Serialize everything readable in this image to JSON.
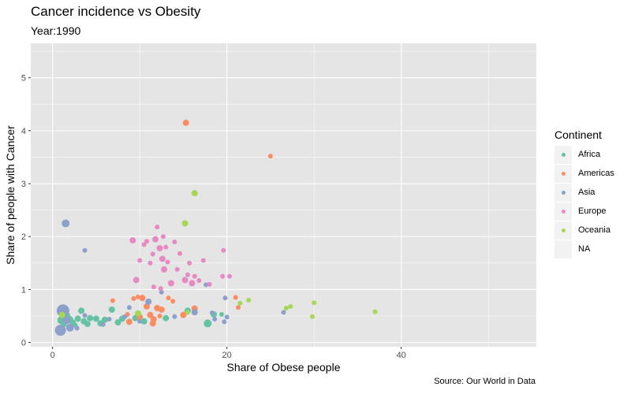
{
  "title": "Cancer incidence vs Obesity",
  "subtitle": "Year:1990",
  "caption": "Source: Our World in Data",
  "legend": {
    "title": "Continent",
    "entries": [
      {
        "label": "Africa",
        "color": "#66c2a5"
      },
      {
        "label": "Americas",
        "color": "#fc8d62"
      },
      {
        "label": "Asia",
        "color": "#8da0cb"
      },
      {
        "label": "Europe",
        "color": "#e78ac3"
      },
      {
        "label": "Oceania",
        "color": "#a6d854"
      },
      {
        "label": "NA",
        "color": ""
      }
    ]
  },
  "colors": {
    "panel_background": "#e5e5e5",
    "grid": "#ffffff"
  },
  "chart_data": {
    "type": "scatter",
    "title": "Cancer incidence vs Obesity",
    "subtitle": "Year:1990",
    "xlabel": "Share of Obese people",
    "ylabel": "Share of people with Cancer",
    "xlim": [
      -2.5,
      55.5
    ],
    "ylim": [
      -0.08,
      5.65
    ],
    "xticks": [
      0,
      20,
      40
    ],
    "yticks": [
      0,
      1,
      2,
      3,
      4,
      5
    ],
    "grid": true,
    "legend_position": "right",
    "series": [
      {
        "name": "Africa",
        "color": "#66c2a5",
        "points": [
          [
            1.0,
            0.42,
            5
          ],
          [
            1.3,
            0.35,
            4
          ],
          [
            1.6,
            0.5,
            5
          ],
          [
            2.0,
            0.44,
            4
          ],
          [
            2.3,
            0.38,
            4
          ],
          [
            2.6,
            0.33,
            3
          ],
          [
            2.9,
            0.45,
            4
          ],
          [
            3.3,
            0.6,
            4
          ],
          [
            3.6,
            0.4,
            4
          ],
          [
            4.0,
            0.35,
            4
          ],
          [
            4.3,
            0.46,
            4
          ],
          [
            5.0,
            0.45,
            4
          ],
          [
            5.5,
            0.36,
            4
          ],
          [
            6.0,
            0.43,
            4
          ],
          [
            6.8,
            0.62,
            4
          ],
          [
            7.5,
            0.38,
            4
          ],
          [
            8.0,
            0.45,
            4
          ],
          [
            9.5,
            0.46,
            4
          ],
          [
            10.5,
            0.4,
            4
          ],
          [
            13.0,
            0.46,
            4
          ],
          [
            15.5,
            0.6,
            4
          ],
          [
            17.8,
            0.36,
            5
          ],
          [
            18.5,
            0.53,
            4
          ],
          [
            19.4,
            0.53,
            3
          ]
        ]
      },
      {
        "name": "Americas",
        "color": "#fc8d62",
        "points": [
          [
            15.3,
            4.15,
            4
          ],
          [
            25.0,
            3.52,
            3
          ],
          [
            6.9,
            0.79,
            3
          ],
          [
            8.6,
            0.53,
            3
          ],
          [
            9.3,
            0.83,
            3
          ],
          [
            9.8,
            0.86,
            3
          ],
          [
            10.3,
            0.84,
            4
          ],
          [
            10.8,
            0.68,
            4
          ],
          [
            11.2,
            0.52,
            4
          ],
          [
            11.6,
            0.44,
            4
          ],
          [
            12.0,
            0.65,
            4
          ],
          [
            12.5,
            0.62,
            4
          ],
          [
            13.3,
            0.84,
            3
          ],
          [
            13.8,
            0.78,
            3
          ],
          [
            15.0,
            0.52,
            4
          ],
          [
            16.3,
            0.64,
            4
          ],
          [
            21.0,
            0.85,
            3
          ],
          [
            21.3,
            0.66,
            3
          ],
          [
            8.8,
            0.39,
            4
          ],
          [
            10.0,
            0.48,
            4
          ],
          [
            11.5,
            0.36,
            4
          ],
          [
            12.3,
            0.5,
            3
          ]
        ]
      },
      {
        "name": "Asia",
        "color": "#8da0cb",
        "points": [
          [
            1.5,
            2.25,
            5
          ],
          [
            3.7,
            1.74,
            3
          ],
          [
            1.2,
            0.6,
            8
          ],
          [
            0.9,
            0.23,
            7
          ],
          [
            1.6,
            0.42,
            5
          ],
          [
            2.0,
            0.28,
            5
          ],
          [
            2.8,
            0.27,
            3
          ],
          [
            3.7,
            0.51,
            3
          ],
          [
            5.8,
            0.34,
            3
          ],
          [
            8.3,
            0.49,
            3
          ],
          [
            8.8,
            0.66,
            3
          ],
          [
            10.0,
            0.4,
            3
          ],
          [
            11.0,
            0.77,
            4
          ],
          [
            12.5,
            0.95,
            3
          ],
          [
            14.0,
            0.49,
            3
          ],
          [
            16.3,
            0.57,
            4
          ],
          [
            18.3,
            0.56,
            3
          ],
          [
            18.6,
            0.44,
            3
          ],
          [
            19.8,
            0.84,
            3
          ],
          [
            20.0,
            0.48,
            3
          ],
          [
            19.7,
            0.39,
            3
          ],
          [
            26.5,
            0.57,
            3
          ],
          [
            6.5,
            0.44,
            3
          ],
          [
            17.6,
            1.09,
            3
          ]
        ]
      },
      {
        "name": "Europe",
        "color": "#e78ac3",
        "points": [
          [
            9.2,
            1.93,
            4
          ],
          [
            9.6,
            1.18,
            4
          ],
          [
            10.0,
            1.55,
            3
          ],
          [
            10.5,
            1.85,
            3
          ],
          [
            10.8,
            1.91,
            3
          ],
          [
            11.2,
            1.5,
            3
          ],
          [
            11.5,
            1.67,
            3
          ],
          [
            11.8,
            1.95,
            4
          ],
          [
            12.0,
            2.18,
            3
          ],
          [
            12.3,
            1.78,
            4
          ],
          [
            12.7,
            2.0,
            3
          ],
          [
            12.6,
            1.58,
            4
          ],
          [
            13.0,
            1.8,
            3
          ],
          [
            12.8,
            1.38,
            4
          ],
          [
            13.2,
            1.52,
            3
          ],
          [
            13.6,
            1.12,
            4
          ],
          [
            14.0,
            1.9,
            3
          ],
          [
            14.3,
            1.38,
            3
          ],
          [
            14.6,
            1.68,
            3
          ],
          [
            15.2,
            1.18,
            4
          ],
          [
            15.7,
            1.5,
            3
          ],
          [
            16.0,
            1.12,
            4
          ],
          [
            16.3,
            1.25,
            3
          ],
          [
            16.8,
            1.17,
            3
          ],
          [
            17.3,
            1.55,
            3
          ],
          [
            18.0,
            1.1,
            3
          ],
          [
            19.6,
            1.74,
            3
          ],
          [
            19.5,
            1.25,
            3
          ],
          [
            20.3,
            1.25,
            3
          ],
          [
            11.6,
            1.05,
            3
          ],
          [
            12.4,
            1.02,
            3
          ],
          [
            15.5,
            1.28,
            3
          ]
        ]
      },
      {
        "name": "Oceania",
        "color": "#a6d854",
        "points": [
          [
            16.3,
            2.82,
            4
          ],
          [
            15.2,
            2.25,
            4
          ],
          [
            22.5,
            0.8,
            3
          ],
          [
            21.5,
            0.74,
            3
          ],
          [
            26.8,
            0.65,
            3
          ],
          [
            27.3,
            0.68,
            3
          ],
          [
            30.0,
            0.75,
            3
          ],
          [
            29.8,
            0.49,
            3
          ],
          [
            37.0,
            0.58,
            3
          ],
          [
            9.8,
            0.55,
            4
          ],
          [
            15.5,
            0.57,
            3
          ],
          [
            1.1,
            0.52,
            4
          ]
        ]
      }
    ]
  }
}
